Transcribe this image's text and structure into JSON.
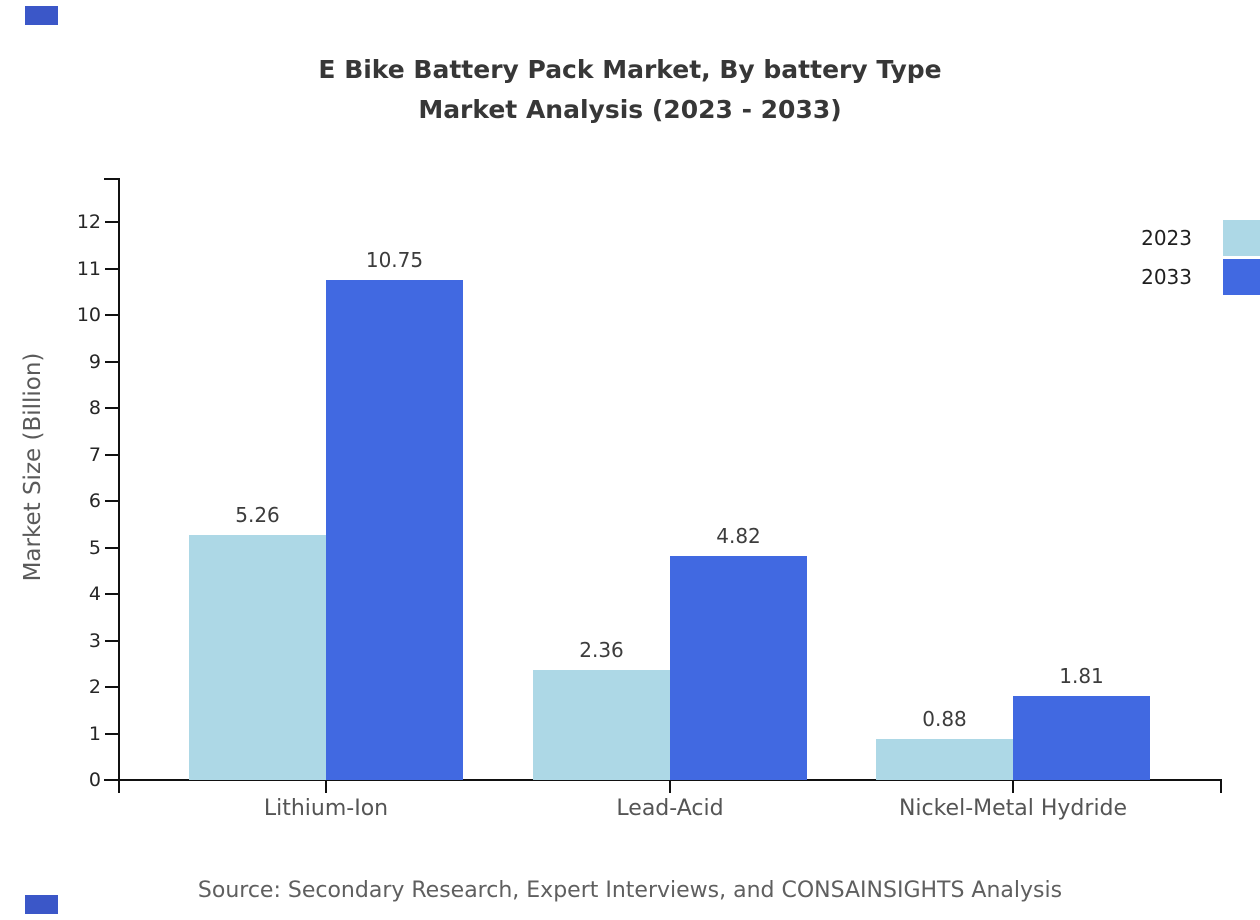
{
  "title": {
    "line1": "E Bike Battery Pack Market, By battery Type",
    "line2": "Market Analysis (2023 - 2033)"
  },
  "chart_data": {
    "type": "bar",
    "title": "E Bike Battery Pack Market, By battery Type Market Analysis (2023 - 2033)",
    "categories": [
      "Lithium-Ion",
      "Lead-Acid",
      "Nickel-Metal Hydride"
    ],
    "series": [
      {
        "name": "2023",
        "color": "#ADD8E6",
        "values": [
          5.26,
          2.36,
          0.88
        ]
      },
      {
        "name": "2033",
        "color": "#4169E1",
        "values": [
          10.75,
          4.82,
          1.81
        ]
      }
    ],
    "value_labels": [
      [
        "5.26",
        "2.36",
        "0.88"
      ],
      [
        "10.75",
        "4.82",
        "1.81"
      ]
    ],
    "xlabel": "",
    "ylabel": "Market Size (Billion)",
    "ylim": [
      0,
      12.95
    ],
    "yticks": [
      0,
      1,
      2,
      3,
      4,
      5,
      6,
      7,
      8,
      9,
      10,
      11,
      12
    ],
    "grid": false,
    "legend_position": "top-right",
    "axis_color": "#111111",
    "tick_label_color": "#262626",
    "category_label_color": "#555555",
    "value_label_color": "#3c3c3c"
  },
  "footer": {
    "source": "Source: Secondary Research, Expert Interviews, and CONSAINSIGHTS Analysis"
  },
  "decor": {
    "corner_mark_color": "#3b57c8"
  }
}
